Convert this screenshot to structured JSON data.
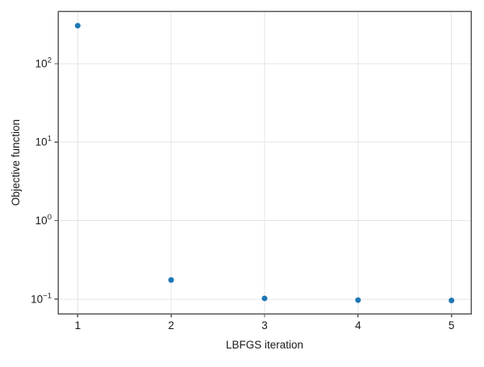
{
  "figure": {
    "background": "#ffffff"
  },
  "chart_data": {
    "type": "scatter",
    "title": "",
    "xlabel": "LBFGS iteration",
    "ylabel": "Objective function",
    "x": [
      1,
      2,
      3,
      4,
      5
    ],
    "y": [
      305,
      0.175,
      0.102,
      0.097,
      0.096
    ],
    "xticks": [
      {
        "value": 1,
        "label": "1"
      },
      {
        "value": 2,
        "label": "2"
      },
      {
        "value": 3,
        "label": "3"
      },
      {
        "value": 4,
        "label": "4"
      },
      {
        "value": 5,
        "label": "5"
      }
    ],
    "yticks": [
      {
        "value": 100,
        "base": "10",
        "exp": "2"
      },
      {
        "value": 10,
        "base": "10",
        "exp": "1"
      },
      {
        "value": 1,
        "base": "10",
        "exp": "0"
      },
      {
        "value": 0.1,
        "base": "10",
        "exp": "−1"
      }
    ],
    "xlim": [
      0.79,
      5.21
    ],
    "ylim": [
      0.065,
      465
    ],
    "yscale": "log",
    "grid": true,
    "legend": "none",
    "marker_color": "#1f77b4",
    "colors": {
      "spine": "#595959",
      "grid": "#e4e4e4",
      "tick_text": "#1a1a1a",
      "label_text": "#1a1a1a",
      "background": "#ffffff"
    }
  }
}
